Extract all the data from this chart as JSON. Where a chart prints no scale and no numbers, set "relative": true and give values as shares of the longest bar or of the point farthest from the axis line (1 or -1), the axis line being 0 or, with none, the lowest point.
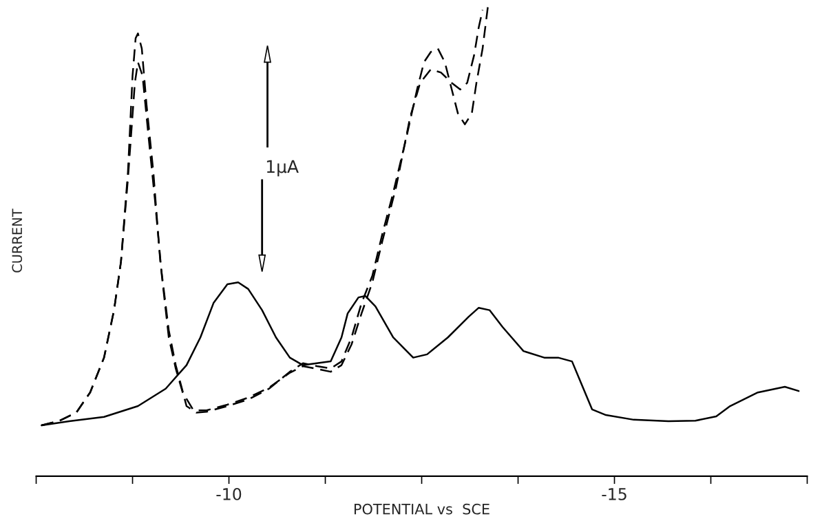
{
  "chart_data": {
    "type": "line",
    "relative": true,
    "xlabel": "POTENTIAL vs  SCE",
    "ylabel": "CURRENT",
    "annotations": [
      "1μA"
    ],
    "xlim": [
      -7.5,
      -17.5
    ],
    "xticks": [
      {
        "value": -7.5,
        "label": null
      },
      {
        "value": -8.75,
        "label": null
      },
      -10,
      {
        "value": -11.25,
        "label": null
      },
      {
        "value": -12.5,
        "label": null
      },
      {
        "value": -13.75,
        "label": null
      },
      -15,
      {
        "value": -16.25,
        "label": null
      },
      {
        "value": -17.5,
        "label": null
      }
    ],
    "series": [
      {
        "color": "#000000",
        "line_style": "solid",
        "x": [
          -7.57,
          -7.93,
          -8.38,
          -8.82,
          -9.18,
          -9.45,
          -9.63,
          -9.8,
          -9.98,
          -10.12,
          -10.25,
          -10.43,
          -10.61,
          -10.79,
          -10.96,
          -11.14,
          -11.32,
          -11.46,
          -11.54,
          -11.68,
          -11.77,
          -11.9,
          -12.13,
          -12.39,
          -12.57,
          -12.84,
          -13.11,
          -13.24,
          -13.38,
          -13.55,
          -13.82,
          -14.09,
          -14.27,
          -14.45,
          -14.58,
          -14.71,
          -14.89,
          -15.25,
          -15.7,
          -16.05,
          -16.32,
          -16.5,
          -16.86,
          -17.21,
          -17.39
        ],
        "values": [
          0.108,
          0.117,
          0.126,
          0.149,
          0.186,
          0.236,
          0.295,
          0.368,
          0.408,
          0.412,
          0.398,
          0.353,
          0.295,
          0.252,
          0.236,
          0.24,
          0.244,
          0.295,
          0.346,
          0.38,
          0.383,
          0.361,
          0.295,
          0.252,
          0.259,
          0.295,
          0.339,
          0.358,
          0.353,
          0.317,
          0.266,
          0.252,
          0.252,
          0.244,
          0.193,
          0.142,
          0.13,
          0.12,
          0.117,
          0.118,
          0.127,
          0.149,
          0.178,
          0.19,
          0.181
        ]
      },
      {
        "color": "#000000",
        "line_style": "dashed",
        "x": [
          -7.57,
          -7.79,
          -8.02,
          -8.2,
          -8.38,
          -8.51,
          -8.6,
          -8.69,
          -8.75,
          -8.79,
          -8.82,
          -8.87,
          -8.93,
          -9.02,
          -9.11,
          -9.22,
          -9.31,
          -9.38,
          -9.45,
          -9.58,
          -9.71,
          -9.98,
          -10.25,
          -10.52,
          -10.79,
          -10.96,
          -11.14,
          -11.32,
          -11.46,
          -11.59,
          -11.72,
          -11.86,
          -11.99,
          -12.13,
          -12.3,
          -12.44,
          -12.53,
          -12.62,
          -12.71,
          -12.8,
          -12.89,
          -12.97,
          -13.06,
          -13.15,
          -13.21,
          -13.29,
          -13.36
        ],
        "values": [
          0.108,
          0.117,
          0.135,
          0.178,
          0.252,
          0.353,
          0.456,
          0.646,
          0.851,
          0.931,
          0.941,
          0.909,
          0.792,
          0.646,
          0.456,
          0.31,
          0.236,
          0.193,
          0.149,
          0.135,
          0.137,
          0.149,
          0.163,
          0.186,
          0.222,
          0.24,
          0.234,
          0.229,
          0.244,
          0.295,
          0.368,
          0.426,
          0.515,
          0.602,
          0.719,
          0.822,
          0.88,
          0.902,
          0.909,
          0.88,
          0.822,
          0.771,
          0.748,
          0.771,
          0.836,
          0.909,
          1.0
        ]
      },
      {
        "color": "#000000",
        "line_style": "dashed",
        "x": [
          -7.57,
          -7.79,
          -8.02,
          -8.2,
          -8.38,
          -8.51,
          -8.6,
          -8.69,
          -8.78,
          -8.82,
          -8.88,
          -8.95,
          -9.04,
          -9.13,
          -9.22,
          -9.31,
          -9.4,
          -9.54,
          -9.71,
          -9.98,
          -10.25,
          -10.52,
          -10.79,
          -10.96,
          -11.14,
          -11.32,
          -11.46,
          -11.59,
          -11.72,
          -11.86,
          -11.99,
          -12.17,
          -12.35,
          -12.48,
          -12.62,
          -12.75,
          -12.89,
          -13.0,
          -13.09,
          -13.18,
          -13.24,
          -13.29
        ],
        "values": [
          0.108,
          0.117,
          0.135,
          0.178,
          0.252,
          0.353,
          0.456,
          0.632,
          0.836,
          0.88,
          0.851,
          0.734,
          0.588,
          0.426,
          0.295,
          0.229,
          0.178,
          0.14,
          0.14,
          0.152,
          0.167,
          0.188,
          0.22,
          0.234,
          0.228,
          0.222,
          0.236,
          0.28,
          0.346,
          0.412,
          0.5,
          0.616,
          0.763,
          0.836,
          0.865,
          0.858,
          0.836,
          0.822,
          0.836,
          0.895,
          0.954,
          0.991
        ]
      }
    ]
  }
}
